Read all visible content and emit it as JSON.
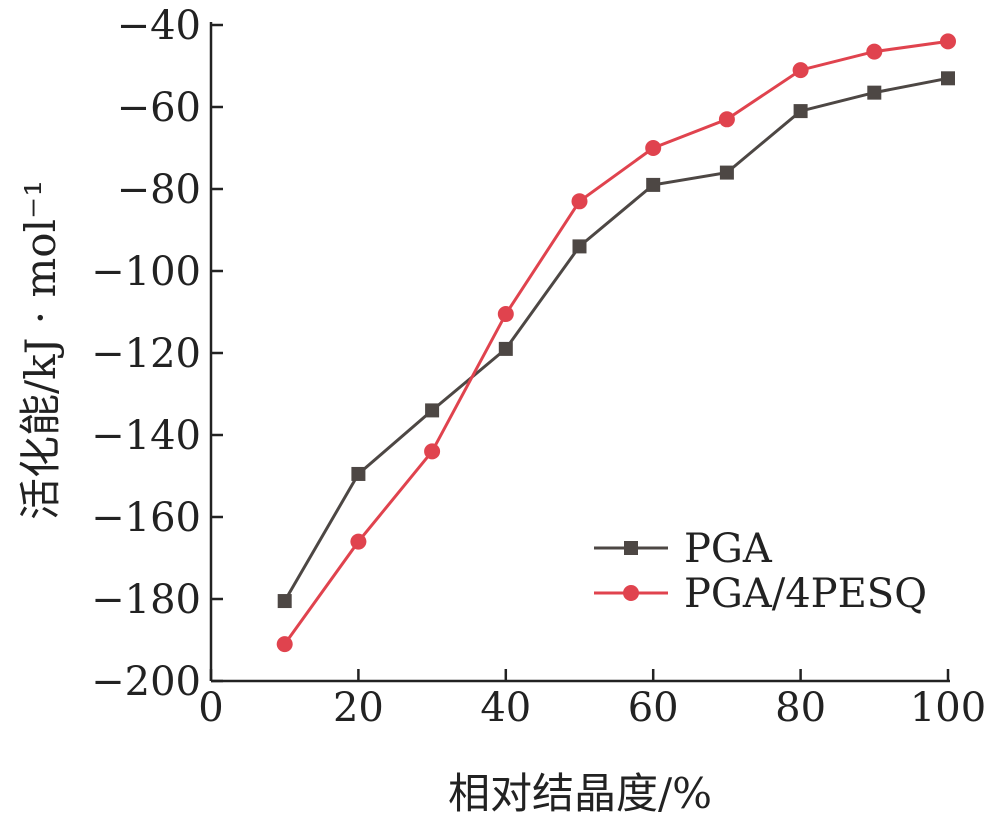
{
  "chart_data": {
    "type": "line",
    "xlabel": "相对结晶度/%",
    "ylabel": "活化能/kJ · mol⁻¹",
    "xlim": [
      0,
      100
    ],
    "ylim": [
      -200,
      -40
    ],
    "xticks": [
      0,
      20,
      40,
      60,
      80,
      100
    ],
    "yticks": [
      -40,
      -60,
      -80,
      -100,
      -120,
      -140,
      -160,
      -180,
      -200
    ],
    "ytick_labels": [
      "−40",
      "−60",
      "−80",
      "−100",
      "−120",
      "−140",
      "−160",
      "−180",
      "−200"
    ],
    "grid": false,
    "legend_position": "bottom-right",
    "series": [
      {
        "name": "PGA",
        "color": "#4d4744",
        "marker": "square",
        "x": [
          10,
          20,
          30,
          40,
          50,
          60,
          70,
          80,
          90,
          100
        ],
        "y": [
          -180.5,
          -149.5,
          -134,
          -119,
          -94,
          -79,
          -76,
          -61,
          -56.5,
          -53
        ]
      },
      {
        "name": "PGA/4PESQ",
        "color": "#e0434e",
        "marker": "circle",
        "x": [
          10,
          20,
          30,
          40,
          50,
          60,
          70,
          80,
          90,
          100
        ],
        "y": [
          -191,
          -166,
          -144,
          -110.5,
          -83,
          -70,
          -63,
          -51,
          -46.5,
          -44
        ]
      }
    ]
  }
}
